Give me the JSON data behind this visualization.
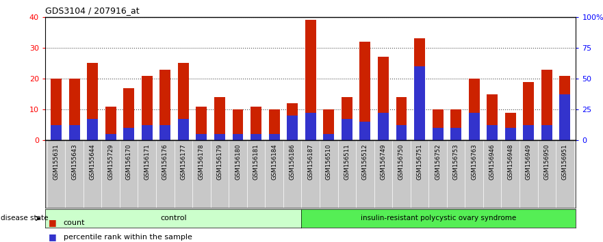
{
  "title": "GDS3104 / 207916_at",
  "samples": [
    "GSM155631",
    "GSM155643",
    "GSM155644",
    "GSM155729",
    "GSM156170",
    "GSM156171",
    "GSM156176",
    "GSM156177",
    "GSM156178",
    "GSM156179",
    "GSM156180",
    "GSM156181",
    "GSM156184",
    "GSM156186",
    "GSM156187",
    "GSM156510",
    "GSM156511",
    "GSM156512",
    "GSM156749",
    "GSM156750",
    "GSM156751",
    "GSM156752",
    "GSM156753",
    "GSM156763",
    "GSM156946",
    "GSM156948",
    "GSM156949",
    "GSM156950",
    "GSM156951"
  ],
  "counts": [
    20,
    20,
    25,
    11,
    17,
    21,
    23,
    25,
    11,
    14,
    10,
    11,
    10,
    12,
    39,
    10,
    14,
    32,
    27,
    14,
    33,
    10,
    10,
    20,
    15,
    9,
    19,
    23,
    21
  ],
  "percentile_ranks": [
    5,
    5,
    7,
    2,
    4,
    5,
    5,
    7,
    2,
    2,
    2,
    2,
    2,
    8,
    9,
    2,
    7,
    6,
    9,
    5,
    24,
    4,
    4,
    9,
    5,
    4,
    5,
    5,
    15
  ],
  "control_count": 14,
  "disease_count": 15,
  "control_label": "control",
  "disease_label": "insulin-resistant polycystic ovary syndrome",
  "ylim_left": [
    0,
    40
  ],
  "ylim_right": [
    0,
    100
  ],
  "yticks_left": [
    0,
    10,
    20,
    30,
    40
  ],
  "yticks_right": [
    0,
    25,
    50,
    75,
    100
  ],
  "ytick_right_labels": [
    "0",
    "25",
    "50",
    "75",
    "100%"
  ],
  "bar_color": "#cc2200",
  "percentile_color": "#3333cc",
  "control_bg": "#ccffcc",
  "disease_bg": "#55ee55",
  "plot_bg": "#ffffff",
  "grid_color": "#000000",
  "tick_bg": "#d4d4d4",
  "legend_count_color": "#cc2200",
  "legend_pct_color": "#3333cc"
}
